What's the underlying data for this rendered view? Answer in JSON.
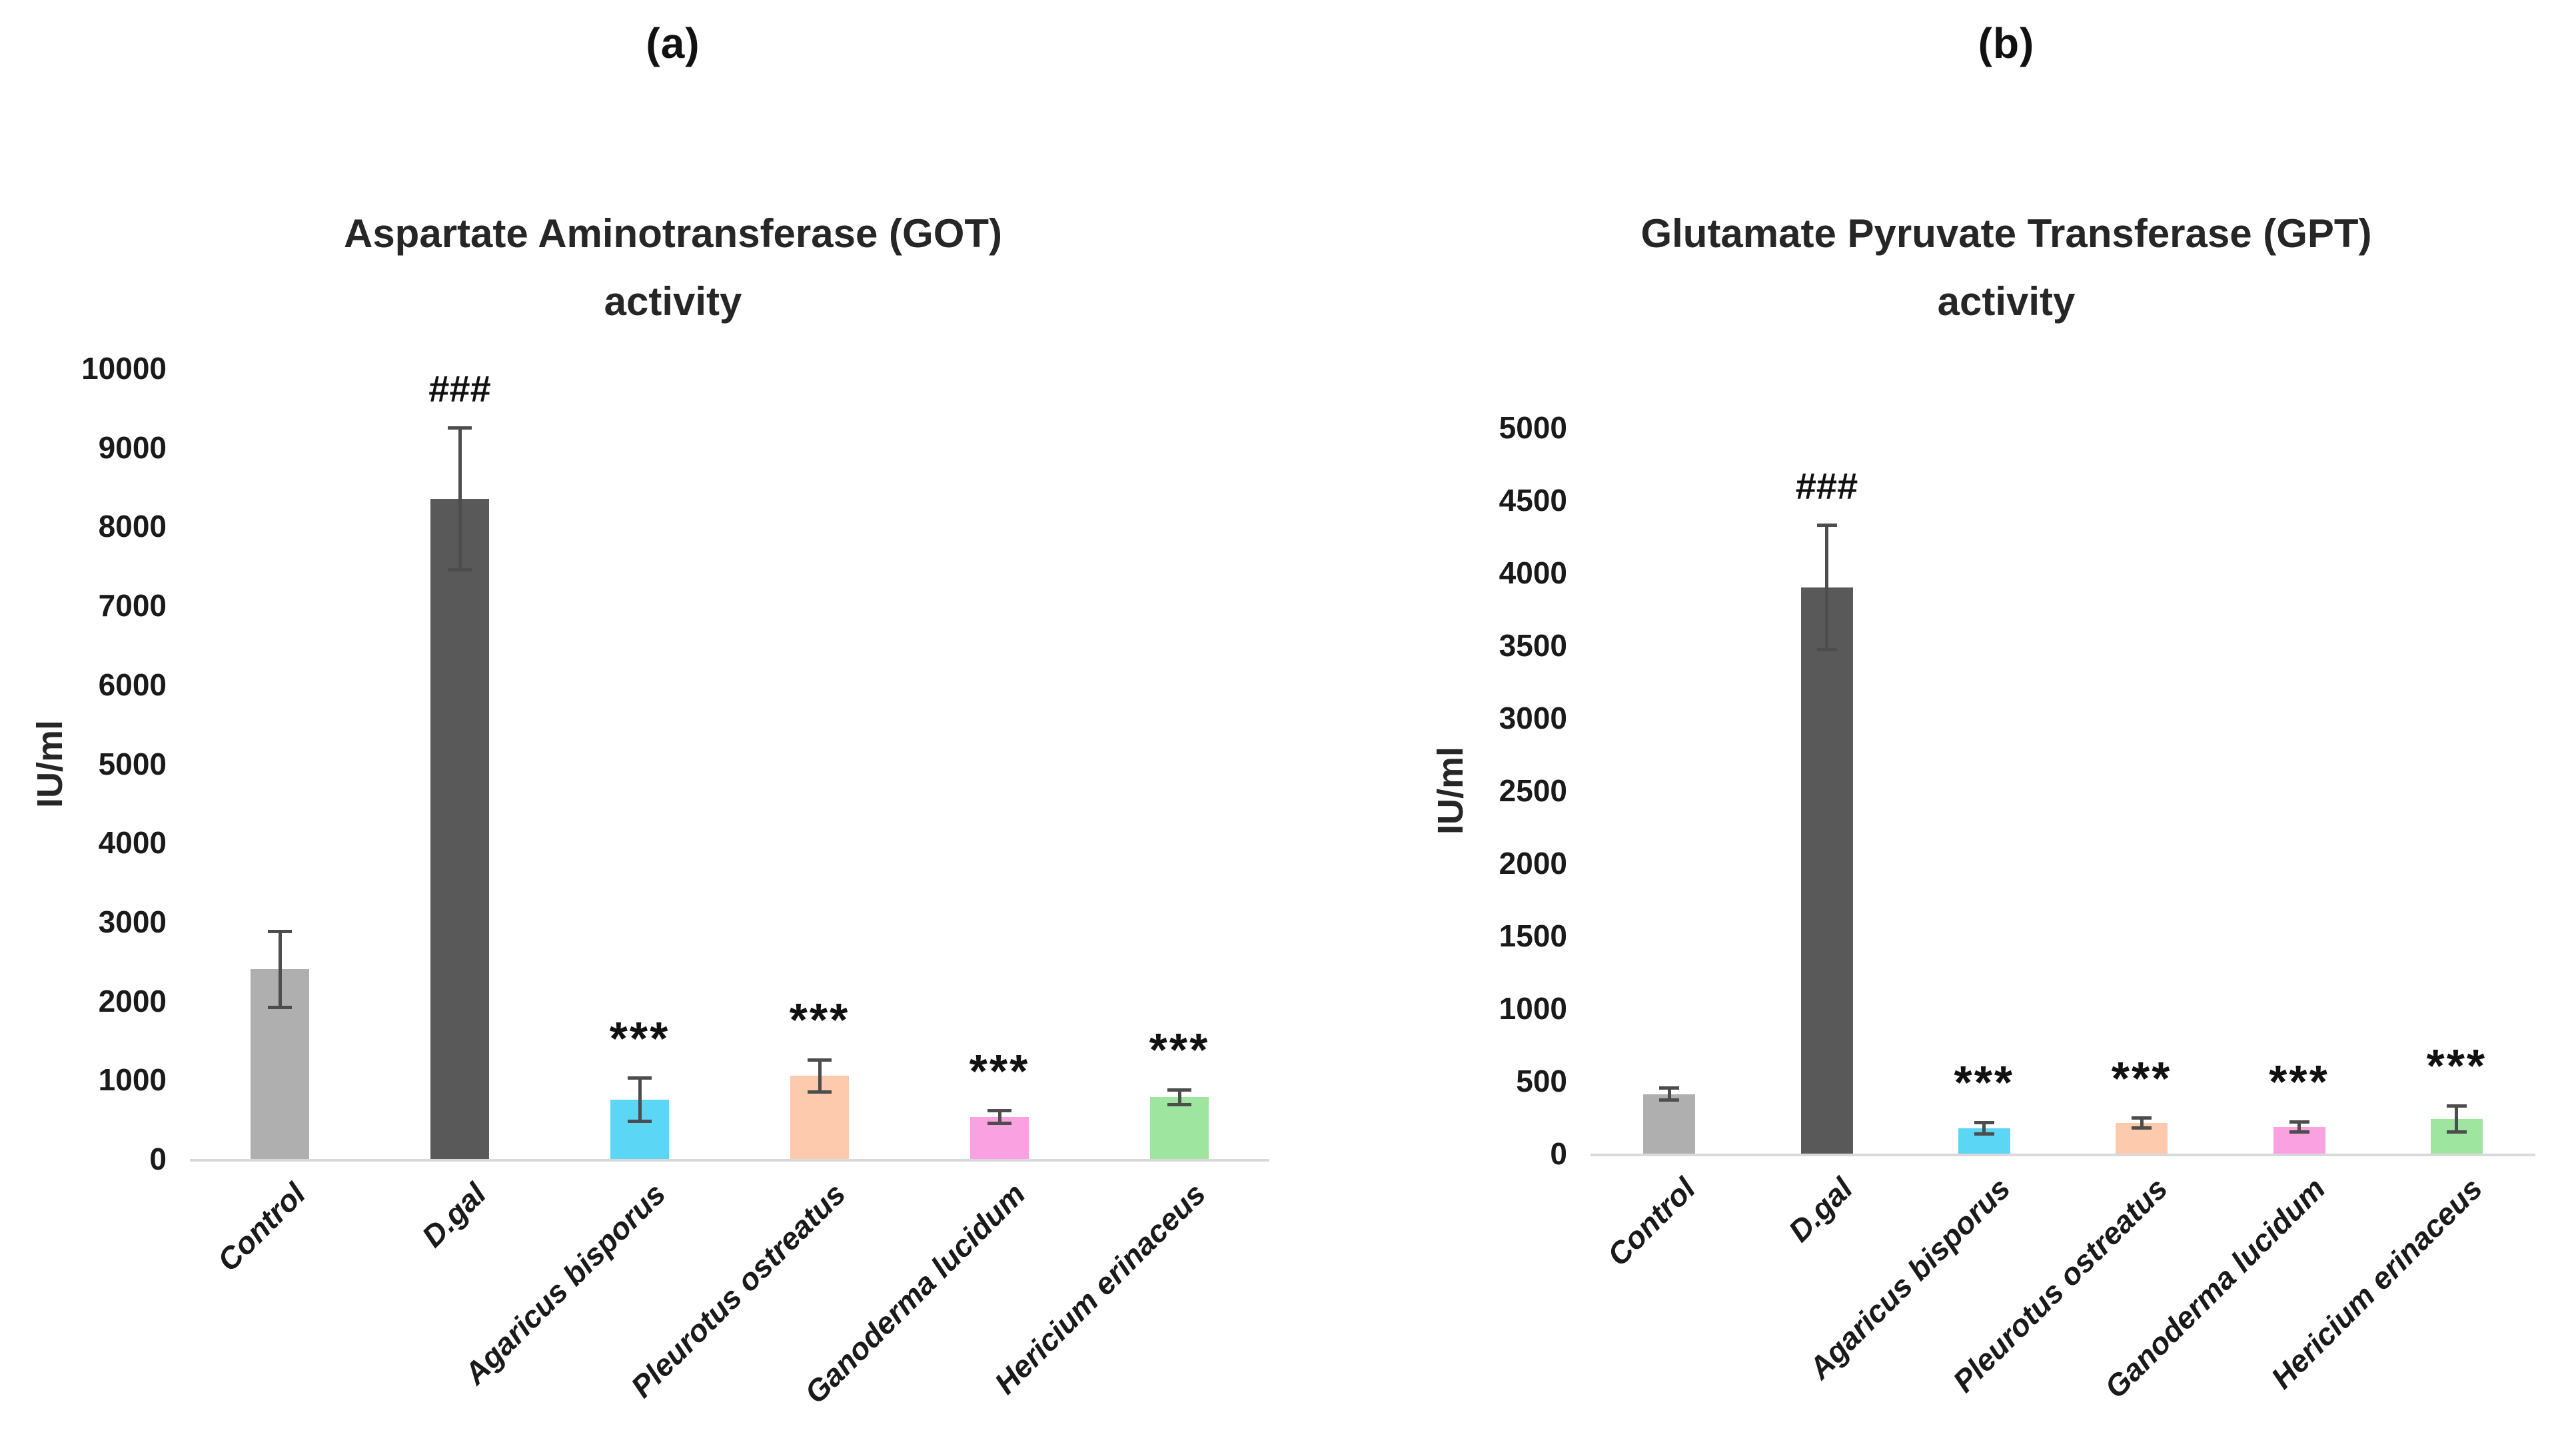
{
  "chart_data": [
    {
      "type": "bar",
      "panel_label": "(a)",
      "title": "Aspartate Aminotransferase (GOT) activity",
      "title_lines": [
        "Aspartate Aminotransferase (GOT)",
        "activity"
      ],
      "ylabel": "IU/ml",
      "xlabel": "",
      "ylim": [
        0,
        10000
      ],
      "ytick_step": 1000,
      "y_ticks": [
        0,
        1000,
        2000,
        3000,
        4000,
        5000,
        6000,
        7000,
        8000,
        9000,
        10000
      ],
      "grid": false,
      "legend_position": "none",
      "categories": [
        "Control",
        "D.gal",
        "Agaricus bisporus",
        "Pleurotus ostreatus",
        "Ganoderma lucidum",
        "Hericium erinaceus"
      ],
      "values": [
        2400,
        8350,
        750,
        1050,
        530,
        780
      ],
      "errors": [
        480,
        900,
        270,
        205,
        80,
        95
      ],
      "annotations": [
        "",
        "###",
        "***",
        "***",
        "***",
        "***"
      ],
      "bar_colors": [
        "#AFAFAF",
        "#595959",
        "#5BD7F5",
        "#FECAAD",
        "#FAA1E2",
        "#9EE5A0"
      ],
      "error_bar_color": "#4D4D4D",
      "axis_line_color": "#D9D9D9"
    },
    {
      "type": "bar",
      "panel_label": "(b)",
      "title": "Glutamate Pyruvate Transferase (GPT) activity",
      "title_lines": [
        "Glutamate Pyruvate Transferase (GPT)",
        "activity"
      ],
      "ylabel": "IU/ml",
      "xlabel": "",
      "ylim": [
        0,
        5000
      ],
      "ytick_step": 500,
      "y_ticks": [
        0,
        500,
        1000,
        1500,
        2000,
        2500,
        3000,
        3500,
        4000,
        4500,
        5000
      ],
      "grid": false,
      "legend_position": "none",
      "categories": [
        "Control",
        "D.gal",
        "Agaricus bisporus",
        "Pleurotus ostreatus",
        "Ganoderma lucidum",
        "Hericium erinaceus"
      ],
      "values": [
        410,
        3900,
        175,
        210,
        185,
        240
      ],
      "errors": [
        40,
        430,
        40,
        35,
        35,
        90
      ],
      "annotations": [
        "",
        "###",
        "***",
        "***",
        "***",
        "***"
      ],
      "bar_colors": [
        "#AFAFAF",
        "#595959",
        "#5BD7F5",
        "#FECAAD",
        "#FAA1E2",
        "#9EE5A0"
      ],
      "error_bar_color": "#4D4D4D",
      "axis_line_color": "#D9D9D9"
    }
  ]
}
